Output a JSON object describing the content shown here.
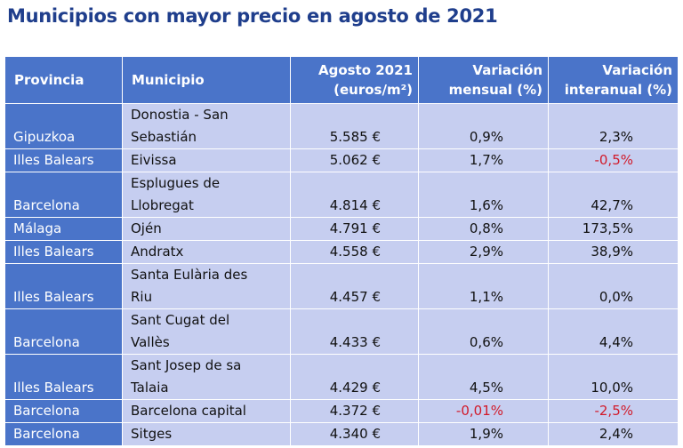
{
  "title": "Municipios con mayor precio en agosto de 2021",
  "header": {
    "provincia": "Provincia",
    "municipio": "Municipio",
    "precio_1": "Agosto 2021",
    "precio_2": "(euros/m²)",
    "mensual_1": "Variación",
    "mensual_2": "mensual (%)",
    "interanual_1": "Variación",
    "interanual_2": "interanual (%)"
  },
  "rows": [
    {
      "provincia": "Gipuzkoa",
      "municipio_1": "Donostia - San",
      "municipio_2": "Sebastián",
      "precio": "5.585 €",
      "mensual": "0,9%",
      "interanual": "2,3%"
    },
    {
      "provincia": "Illes Balears",
      "municipio_1": "Eivissa",
      "precio": "5.062 €",
      "mensual": "1,7%",
      "interanual": "-0,5%"
    },
    {
      "provincia": "Barcelona",
      "municipio_1": "Esplugues de",
      "municipio_2": "Llobregat",
      "precio": "4.814 €",
      "mensual": "1,6%",
      "interanual": "42,7%"
    },
    {
      "provincia": "Málaga",
      "municipio_1": "Ojén",
      "precio": "4.791 €",
      "mensual": "0,8%",
      "interanual": "173,5%"
    },
    {
      "provincia": "Illes Balears",
      "municipio_1": "Andratx",
      "precio": "4.558 €",
      "mensual": "2,9%",
      "interanual": "38,9%"
    },
    {
      "provincia": "Illes Balears",
      "municipio_1": "Santa Eulària des",
      "municipio_2": "Riu",
      "precio": "4.457 €",
      "mensual": "1,1%",
      "interanual": "0,0%"
    },
    {
      "provincia": "Barcelona",
      "municipio_1": "Sant Cugat del",
      "municipio_2": "Vallès",
      "precio": "4.433 €",
      "mensual": "0,6%",
      "interanual": "4,4%"
    },
    {
      "provincia": "Illes Balears",
      "municipio_1": "Sant Josep de sa",
      "municipio_2": "Talaia",
      "precio": "4.429 €",
      "mensual": "4,5%",
      "interanual": "10,0%"
    },
    {
      "provincia": "Barcelona",
      "municipio_1": "Barcelona capital",
      "precio": "4.372 €",
      "mensual": "-0,01%",
      "interanual": "-2,5%"
    },
    {
      "provincia": "Barcelona",
      "municipio_1": "Sitges",
      "precio": "4.340 €",
      "mensual": "1,9%",
      "interanual": "2,4%"
    }
  ],
  "colors": {
    "title": "#1f3e8c",
    "header_bg": "#4a74c9",
    "cell_bg": "#c6cef0",
    "negative": "#d11a2a"
  }
}
